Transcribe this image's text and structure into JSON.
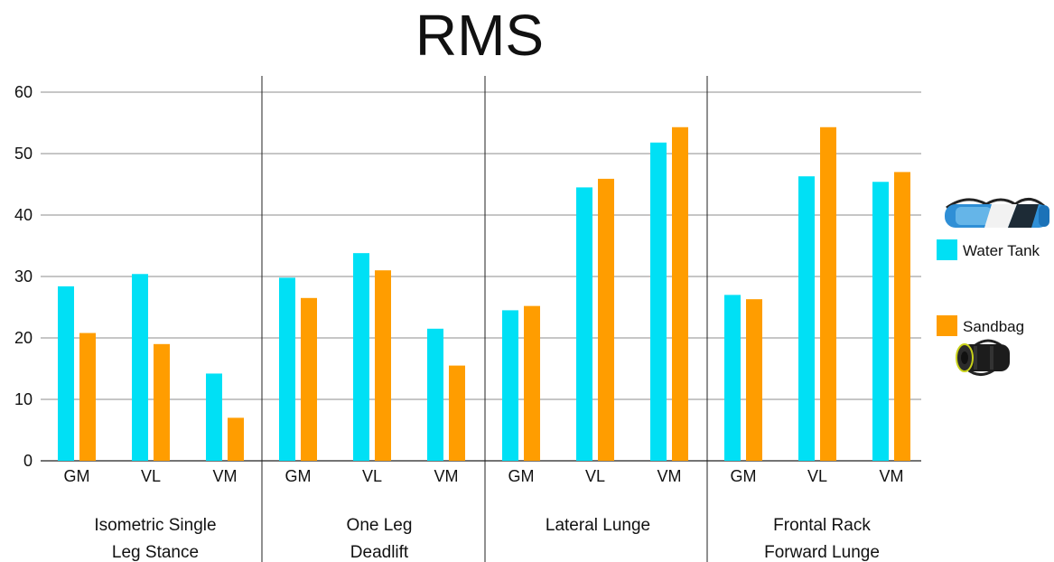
{
  "chart_data": {
    "type": "bar",
    "title": "RMS",
    "xlabel": "",
    "ylabel": "",
    "ylim": [
      0,
      60
    ],
    "yticks": [
      0,
      10,
      20,
      30,
      40,
      50,
      60
    ],
    "grid": true,
    "legend_position": "right",
    "groups": [
      {
        "label_lines": [
          "Isometric Single",
          "Leg Stance"
        ],
        "categories": [
          "GM",
          "VL",
          "VM"
        ]
      },
      {
        "label_lines": [
          "One Leg",
          "Deadlift"
        ],
        "categories": [
          "GM",
          "VL",
          "VM"
        ]
      },
      {
        "label_lines": [
          "Lateral Lunge"
        ],
        "categories": [
          "GM",
          "VL",
          "VM"
        ]
      },
      {
        "label_lines": [
          "Frontal Rack",
          "Forward Lunge"
        ],
        "categories": [
          "GM",
          "VL",
          "VM"
        ]
      }
    ],
    "series": [
      {
        "name": "Water Tank",
        "color": "#00E0F5",
        "values": [
          28.4,
          30.4,
          14.2,
          29.8,
          33.8,
          21.5,
          24.5,
          44.5,
          51.8,
          27.0,
          46.3,
          45.4
        ]
      },
      {
        "name": "Sandbag",
        "color": "#FF9D00",
        "values": [
          20.8,
          19.0,
          7.0,
          26.5,
          31.0,
          15.5,
          25.2,
          45.9,
          54.3,
          26.3,
          54.3,
          47.0
        ]
      }
    ],
    "legend_icons": [
      "water-tank-picture",
      "sandbag-picture"
    ]
  }
}
